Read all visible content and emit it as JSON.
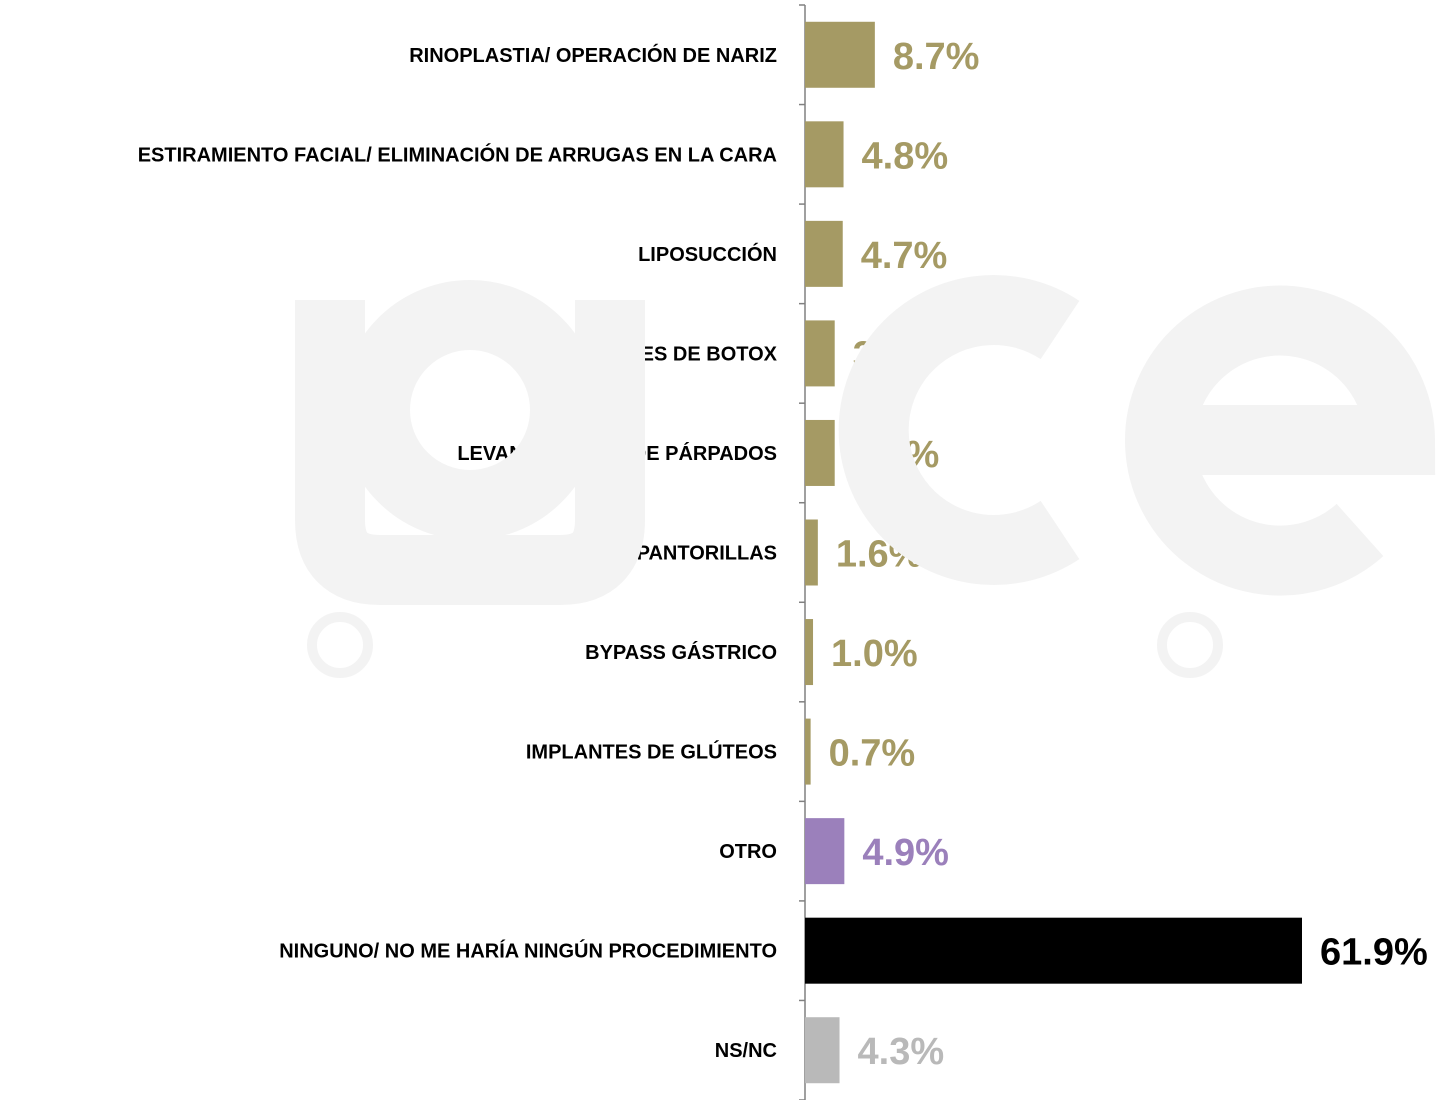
{
  "colors": {
    "procedure": "#a59a64",
    "other": "#9b80bb",
    "none": "#000000",
    "nsnc": "#b9b9b9",
    "axis": "#808080",
    "watermark": "#f3f3f3"
  },
  "chart_data": {
    "type": "bar",
    "orientation": "horizontal",
    "title": "",
    "xlabel": "",
    "ylabel": "",
    "xlim": [
      0,
      61.9
    ],
    "grid": false,
    "legend": "none",
    "categories": [
      "RINOPLASTIA/ OPERACIÓN DE NARIZ",
      "ESTIRAMIENTO FACIAL/ ELIMINACIÓN DE ARRUGAS EN LA CARA",
      "LIPOSUCCIÓN",
      "INYECCIONES DE BOTOX",
      "LEVANTAMIENTO DE PÁRPADOS",
      "IMPLANTES DE PANTORILLAS",
      "BYPASS GÁSTRICO",
      "IMPLANTES DE GLÚTEOS",
      "OTRO",
      "NINGUNO/ NO ME HARÍA NINGÚN PROCEDIMIENTO",
      "NS/NC"
    ],
    "values": [
      8.7,
      4.8,
      4.7,
      3.7,
      3.7,
      1.6,
      1.0,
      0.7,
      4.9,
      61.9,
      4.3
    ],
    "value_labels": [
      "8.7%",
      "4.8%",
      "4.7%",
      "3.7%",
      "3.7%",
      "1.6%",
      "1.0%",
      "0.7%",
      "4.9%",
      "61.9%",
      "4.3%"
    ],
    "bar_colors": [
      "#a59a64",
      "#a59a64",
      "#a59a64",
      "#a59a64",
      "#a59a64",
      "#a59a64",
      "#a59a64",
      "#a59a64",
      "#9b80bb",
      "#000000",
      "#b9b9b9"
    ]
  }
}
